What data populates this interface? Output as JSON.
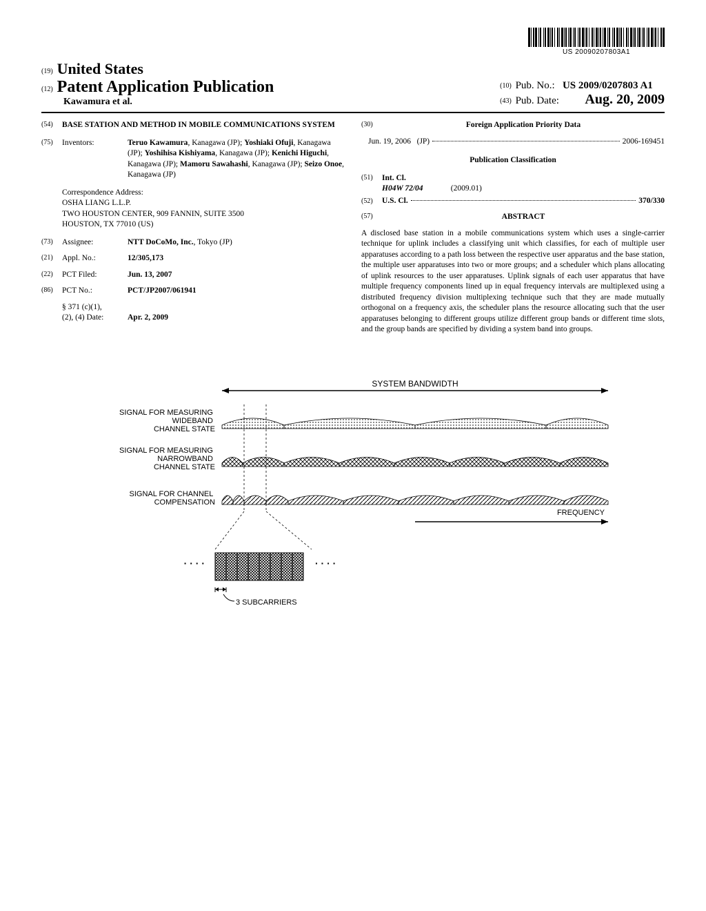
{
  "barcode": {
    "number": "US 20090207803A1"
  },
  "header": {
    "country_prefix": "(19)",
    "country": "United States",
    "doc_type_prefix": "(12)",
    "doc_type": "Patent Application Publication",
    "authors_line": "Kawamura et al.",
    "pubno_prefix": "(10)",
    "pubno_label": "Pub. No.:",
    "pubno_value": "US 2009/0207803 A1",
    "pubdate_prefix": "(43)",
    "pubdate_label": "Pub. Date:",
    "pubdate_value": "Aug. 20, 2009"
  },
  "left": {
    "title_code": "(54)",
    "title": "BASE STATION AND METHOD IN MOBILE COMMUNICATIONS SYSTEM",
    "inventors_code": "(75)",
    "inventors_label": "Inventors:",
    "inventors": [
      {
        "name": "Teruo Kawamura",
        "loc": "Kanagawa (JP)"
      },
      {
        "name": "Yoshiaki Ofuji",
        "loc": "Kanagawa (JP)"
      },
      {
        "name": "Yoshihisa Kishiyama",
        "loc": "Kanagawa (JP)"
      },
      {
        "name": "Kenichi Higuchi",
        "loc": "Kanagawa (JP)"
      },
      {
        "name": "Mamoru Sawahashi",
        "loc": "Kanagawa (JP)"
      },
      {
        "name": "Seizo Onoe",
        "loc": "Kanagawa (JP)"
      }
    ],
    "corr_label": "Correspondence Address:",
    "corr_lines": [
      "OSHA LIANG L.L.P.",
      "TWO HOUSTON CENTER, 909 FANNIN, SUITE 3500",
      "HOUSTON, TX 77010 (US)"
    ],
    "assignee_code": "(73)",
    "assignee_label": "Assignee:",
    "assignee_value": "NTT DoCoMo, Inc., Tokyo (JP)",
    "assignee_name": "NTT DoCoMo, Inc.",
    "assignee_loc": ", Tokyo (JP)",
    "applno_code": "(21)",
    "applno_label": "Appl. No.:",
    "applno_value": "12/305,173",
    "pctfiled_code": "(22)",
    "pctfiled_label": "PCT Filed:",
    "pctfiled_value": "Jun. 13, 2007",
    "pctno_code": "(86)",
    "pctno_label": "PCT No.:",
    "pctno_value": "PCT/JP2007/061941",
    "s371_label": "§ 371 (c)(1),\n(2), (4) Date:",
    "s371_value": "Apr. 2, 2009"
  },
  "right": {
    "foreign_code": "(30)",
    "foreign_title": "Foreign Application Priority Data",
    "foreign_date": "Jun. 19, 2006",
    "foreign_country": "(JP)",
    "foreign_number": "2006-169451",
    "pubclass_title": "Publication Classification",
    "intcl_code": "(51)",
    "intcl_label": "Int. Cl.",
    "intcl_class": "H04W 72/04",
    "intcl_year": "(2009.01)",
    "uscl_code": "(52)",
    "uscl_label": "U.S. Cl.",
    "uscl_value": "370/330",
    "abstract_code": "(57)",
    "abstract_title": "ABSTRACT",
    "abstract_text": "A disclosed base station in a mobile communications system which uses a single-carrier technique for uplink includes a classifying unit which classifies, for each of multiple user apparatuses according to a path loss between the respective user apparatus and the base station, the multiple user apparatuses into two or more groups; and a scheduler which plans allocating of uplink resources to the user apparatuses. Uplink signals of each user apparatus that have multiple frequency components lined up in equal frequency intervals are multiplexed using a distributed frequency division multiplexing technique such that they are made mutually orthogonal on a frequency axis, the scheduler plans the resource allocating such that the user apparatuses belonging to different groups utilize different group bands or different time slots, and the group bands are specified by dividing a system band into groups."
  },
  "figure": {
    "title": "SYSTEM BANDWIDTH",
    "labels": {
      "wideband": "SIGNAL FOR MEASURING\nWIDEBAND\nCHANNEL STATE",
      "narrowband": "SIGNAL FOR MEASURING\nNARROWBAND\nCHANNEL STATE",
      "compensation": "SIGNAL FOR CHANNEL\nCOMPENSATION",
      "frequency": "FREQUENCY",
      "subcarriers": "3 SUBCARRIERS"
    },
    "colors": {
      "stroke": "#000000",
      "text": "#000000",
      "bg": "#ffffff"
    },
    "font_family": "Arial, Helvetica, sans-serif",
    "label_fontsize": 11,
    "title_fontsize": 12
  }
}
